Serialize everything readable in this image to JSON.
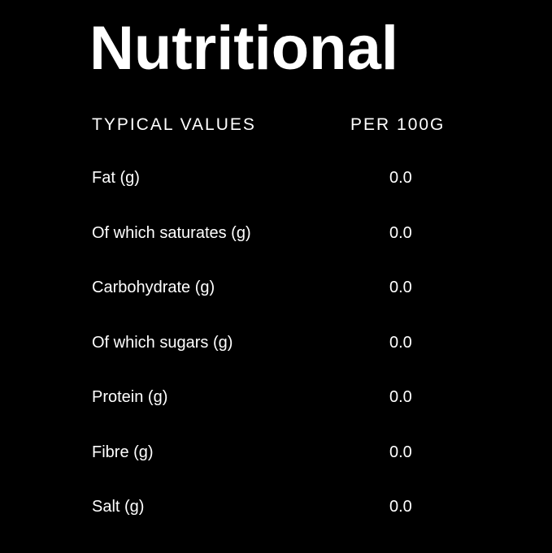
{
  "title": "Nutritional",
  "header": {
    "left": "TYPICAL VALUES",
    "right": "PER 100G"
  },
  "rows": [
    {
      "label": "Fat (g)",
      "value": "0.0"
    },
    {
      "label": "Of which saturates (g)",
      "value": "0.0"
    },
    {
      "label": "Carbohydrate (g)",
      "value": "0.0"
    },
    {
      "label": "Of which sugars (g)",
      "value": "0.0"
    },
    {
      "label": "Protein (g)",
      "value": "0.0"
    },
    {
      "label": "Fibre (g)",
      "value": "0.0"
    },
    {
      "label": "Salt (g)",
      "value": "0.0"
    }
  ]
}
